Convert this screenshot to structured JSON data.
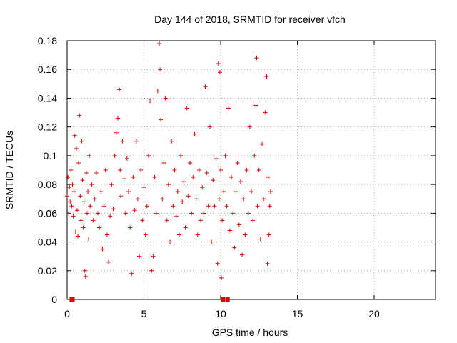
{
  "chart_data": {
    "type": "scatter",
    "title": "Day 144 of 2018, SRMTID for receiver vfch",
    "xlabel": "GPS time / hours",
    "ylabel": "SRMTID / TECUs",
    "xlim": [
      0,
      24
    ],
    "ylim": [
      0,
      0.18
    ],
    "xticks": [
      0,
      5,
      10,
      15,
      20
    ],
    "xtick_labels": [
      "0",
      "5",
      "10",
      "15",
      "20"
    ],
    "yticks": [
      0,
      0.02,
      0.04,
      0.06,
      0.08,
      0.1,
      0.12,
      0.14,
      0.16,
      0.18
    ],
    "ytick_labels": [
      "0",
      "0.02",
      "0.04",
      "0.06",
      "0.08",
      "0.1",
      "0.12",
      "0.14",
      "0.16",
      "0.18"
    ],
    "grid": true,
    "marker_color": "#e00000",
    "data_range_hours": [
      0,
      13.3
    ],
    "series": [
      {
        "marker": "plus",
        "points": [
          [
            0.0,
            0.072
          ],
          [
            0.05,
            0.085
          ],
          [
            0.1,
            0.06
          ],
          [
            0.15,
            0.078
          ],
          [
            0.2,
            0.068
          ],
          [
            0.25,
            0.09
          ],
          [
            0.3,
            0.065
          ],
          [
            0.35,
            0.08
          ],
          [
            0.4,
            0.058
          ],
          [
            0.45,
            0.075
          ],
          [
            0.5,
            0.114
          ],
          [
            0.55,
            0.047
          ],
          [
            0.6,
            0.105
          ],
          [
            0.65,
            0.062
          ],
          [
            0.7,
            0.044
          ],
          [
            0.75,
            0.095
          ],
          [
            0.8,
            0.128
          ],
          [
            0.85,
            0.072
          ],
          [
            0.9,
            0.055
          ],
          [
            0.95,
            0.11
          ],
          [
            1.0,
            0.083
          ],
          [
            1.05,
            0.05
          ],
          [
            1.1,
            0.068
          ],
          [
            1.15,
            0.02
          ],
          [
            1.2,
            0.016
          ],
          [
            1.25,
            0.088
          ],
          [
            1.3,
            0.06
          ],
          [
            1.35,
            0.075
          ],
          [
            1.4,
            0.042
          ],
          [
            1.45,
            0.1
          ],
          [
            1.5,
            0.065
          ],
          [
            1.6,
            0.08
          ],
          [
            1.7,
            0.055
          ],
          [
            1.8,
            0.07
          ],
          [
            1.9,
            0.088
          ],
          [
            2.0,
            0.06
          ],
          [
            2.1,
            0.05
          ],
          [
            2.2,
            0.075
          ],
          [
            2.3,
            0.035
          ],
          [
            2.4,
            0.065
          ],
          [
            2.5,
            0.09
          ],
          [
            2.6,
            0.045
          ],
          [
            2.7,
            0.026
          ],
          [
            2.8,
            0.058
          ],
          [
            2.9,
            0.08
          ],
          [
            3.0,
            0.063
          ],
          [
            3.1,
            0.1
          ],
          [
            3.2,
            0.116
          ],
          [
            3.3,
            0.126
          ],
          [
            3.4,
            0.146
          ],
          [
            3.45,
            0.09
          ],
          [
            3.5,
            0.072
          ],
          [
            3.6,
            0.11
          ],
          [
            3.7,
            0.084
          ],
          [
            3.8,
            0.06
          ],
          [
            3.9,
            0.098
          ],
          [
            4.0,
            0.075
          ],
          [
            4.1,
            0.05
          ],
          [
            4.2,
            0.018
          ],
          [
            4.3,
            0.085
          ],
          [
            4.4,
            0.062
          ],
          [
            4.5,
            0.11
          ],
          [
            4.6,
            0.07
          ],
          [
            4.7,
            0.03
          ],
          [
            4.8,
            0.09
          ],
          [
            4.9,
            0.055
          ],
          [
            5.0,
            0.078
          ],
          [
            5.1,
            0.045
          ],
          [
            5.2,
            0.065
          ],
          [
            5.3,
            0.1
          ],
          [
            5.4,
            0.138
          ],
          [
            5.5,
            0.02
          ],
          [
            5.6,
            0.03
          ],
          [
            5.7,
            0.085
          ],
          [
            5.8,
            0.06
          ],
          [
            5.9,
            0.145
          ],
          [
            6.0,
            0.178
          ],
          [
            6.05,
            0.16
          ],
          [
            6.1,
            0.125
          ],
          [
            6.2,
            0.07
          ],
          [
            6.3,
            0.095
          ],
          [
            6.4,
            0.14
          ],
          [
            6.5,
            0.055
          ],
          [
            6.6,
            0.08
          ],
          [
            6.7,
            0.04
          ],
          [
            6.8,
            0.11
          ],
          [
            6.9,
            0.065
          ],
          [
            7.0,
            0.09
          ],
          [
            7.1,
            0.058
          ],
          [
            7.2,
            0.075
          ],
          [
            7.3,
            0.045
          ],
          [
            7.4,
            0.1
          ],
          [
            7.5,
            0.068
          ],
          [
            7.6,
            0.082
          ],
          [
            7.7,
            0.05
          ],
          [
            7.8,
            0.133
          ],
          [
            7.9,
            0.072
          ],
          [
            8.0,
            0.095
          ],
          [
            8.1,
            0.06
          ],
          [
            8.2,
            0.085
          ],
          [
            8.3,
            0.115
          ],
          [
            8.4,
            0.07
          ],
          [
            8.5,
            0.045
          ],
          [
            8.6,
            0.09
          ],
          [
            8.7,
            0.055
          ],
          [
            8.8,
            0.078
          ],
          [
            8.9,
            0.06
          ],
          [
            9.0,
            0.148
          ],
          [
            9.1,
            0.088
          ],
          [
            9.2,
            0.065
          ],
          [
            9.3,
            0.12
          ],
          [
            9.4,
            0.04
          ],
          [
            9.5,
            0.083
          ],
          [
            9.6,
            0.065
          ],
          [
            9.7,
            0.098
          ],
          [
            9.8,
            0.025
          ],
          [
            9.85,
            0.164
          ],
          [
            9.9,
            0.07
          ],
          [
            9.95,
            0.158
          ],
          [
            10.0,
            0.09
          ],
          [
            10.05,
            0.015
          ],
          [
            10.1,
            0.055
          ],
          [
            10.2,
            0.075
          ],
          [
            10.3,
            0.1
          ],
          [
            10.4,
            0.065
          ],
          [
            10.5,
            0.133
          ],
          [
            10.6,
            0.048
          ],
          [
            10.7,
            0.085
          ],
          [
            10.8,
            0.06
          ],
          [
            10.9,
            0.036
          ],
          [
            11.0,
            0.075
          ],
          [
            11.1,
            0.095
          ],
          [
            11.2,
            0.052
          ],
          [
            11.3,
            0.082
          ],
          [
            11.4,
            0.031
          ],
          [
            11.5,
            0.07
          ],
          [
            11.6,
            0.045
          ],
          [
            11.7,
            0.09
          ],
          [
            11.8,
            0.06
          ],
          [
            11.9,
            0.12
          ],
          [
            12.0,
            0.075
          ],
          [
            12.1,
            0.055
          ],
          [
            12.2,
            0.1
          ],
          [
            12.3,
            0.135
          ],
          [
            12.35,
            0.168
          ],
          [
            12.4,
            0.065
          ],
          [
            12.5,
            0.09
          ],
          [
            12.6,
            0.042
          ],
          [
            12.7,
            0.108
          ],
          [
            12.8,
            0.07
          ],
          [
            12.9,
            0.13
          ],
          [
            13.0,
            0.155
          ],
          [
            13.05,
            0.025
          ],
          [
            13.1,
            0.085
          ],
          [
            13.15,
            0.045
          ],
          [
            13.2,
            0.065
          ],
          [
            13.25,
            0.075
          ]
        ]
      }
    ],
    "zero_points": [
      0.3,
      0.35,
      10.15,
      10.45
    ]
  }
}
